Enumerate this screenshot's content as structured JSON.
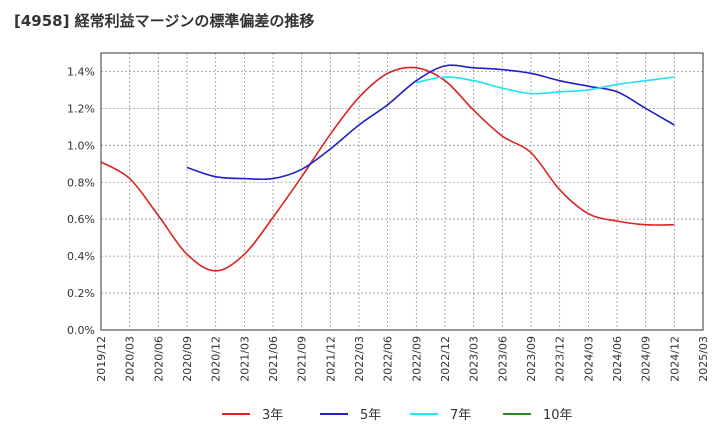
{
  "chart_data": {
    "type": "line",
    "title": "[4958]  経常利益マージンの標準偏差の推移",
    "x": [
      "2019/12",
      "2020/03",
      "2020/06",
      "2020/09",
      "2020/12",
      "2021/03",
      "2021/06",
      "2021/09",
      "2021/12",
      "2022/03",
      "2022/06",
      "2022/09",
      "2022/12",
      "2023/03",
      "2023/06",
      "2023/09",
      "2023/12",
      "2024/03",
      "2024/06",
      "2024/09",
      "2024/12",
      "2025/03"
    ],
    "ylim": [
      0,
      1.5
    ],
    "yticks": [
      "0.0%",
      "0.2%",
      "0.4%",
      "0.6%",
      "0.8%",
      "1.0%",
      "1.2%",
      "1.4%"
    ],
    "grid": true,
    "legend_position": "bottom",
    "series": [
      {
        "name": "3年",
        "color": "#dd2222",
        "values": [
          0.91,
          0.82,
          0.62,
          0.41,
          0.32,
          0.41,
          0.61,
          0.83,
          1.06,
          1.26,
          1.39,
          1.42,
          1.35,
          1.19,
          1.05,
          0.96,
          0.76,
          0.63,
          0.59,
          0.57,
          0.57,
          null
        ]
      },
      {
        "name": "5年",
        "color": "#1f22c8",
        "values": [
          null,
          null,
          null,
          0.88,
          0.83,
          0.82,
          0.82,
          0.87,
          0.98,
          1.11,
          1.22,
          1.35,
          1.43,
          1.42,
          1.41,
          1.39,
          1.35,
          1.32,
          1.29,
          1.2,
          1.11,
          null
        ]
      },
      {
        "name": "7年",
        "color": "#22e0f0",
        "values": [
          null,
          null,
          null,
          null,
          null,
          null,
          null,
          null,
          null,
          null,
          null,
          1.34,
          1.37,
          1.35,
          1.31,
          1.28,
          1.29,
          1.3,
          1.33,
          1.35,
          1.37,
          null
        ]
      },
      {
        "name": "10年",
        "color": "#228b22",
        "values": [
          null,
          null,
          null,
          null,
          null,
          null,
          null,
          null,
          null,
          null,
          null,
          null,
          null,
          null,
          null,
          null,
          null,
          null,
          null,
          null,
          null,
          null
        ]
      }
    ]
  }
}
